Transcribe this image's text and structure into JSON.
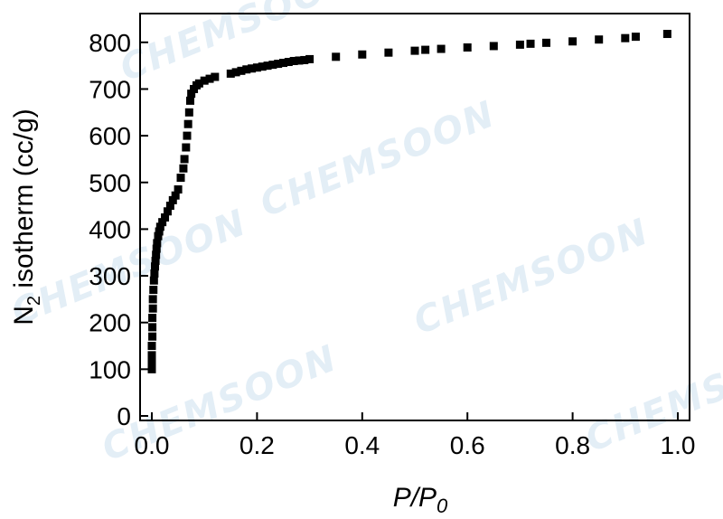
{
  "watermark": "CHEMSOON",
  "chart_data": {
    "type": "scatter",
    "title": "",
    "xlabel_main": "P/P",
    "xlabel_sub": "0",
    "ylabel_main": "N",
    "ylabel_sub": "2",
    "ylabel_rest": " isotherm (cc/g)",
    "xlim": [
      0.0,
      1.0
    ],
    "ylim": [
      0,
      850
    ],
    "xticks": [
      0.0,
      0.2,
      0.4,
      0.6,
      0.8,
      1.0
    ],
    "xtick_labels": [
      "0.0",
      "0.2",
      "0.4",
      "0.6",
      "0.8",
      "1.0"
    ],
    "yticks": [
      0,
      100,
      200,
      300,
      400,
      500,
      600,
      700,
      800
    ],
    "ytick_labels": [
      "0",
      "100",
      "200",
      "300",
      "400",
      "500",
      "600",
      "700",
      "800"
    ],
    "grid": false,
    "marker": "square",
    "marker_color": "#000000",
    "series": [
      {
        "x": [
          0.0,
          0.0,
          0.0,
          0.0,
          0.001,
          0.001,
          0.001,
          0.002,
          0.002,
          0.003,
          0.004,
          0.005,
          0.006,
          0.007,
          0.008,
          0.009,
          0.01,
          0.012,
          0.014,
          0.016,
          0.02,
          0.025,
          0.03,
          0.035,
          0.04,
          0.045,
          0.05,
          0.055,
          0.06,
          0.062,
          0.065,
          0.067,
          0.069,
          0.071,
          0.073,
          0.075,
          0.08,
          0.085,
          0.09,
          0.1,
          0.11,
          0.12,
          0.15,
          0.16,
          0.17,
          0.18,
          0.19,
          0.2,
          0.21,
          0.22,
          0.23,
          0.24,
          0.25,
          0.26,
          0.27,
          0.28,
          0.29,
          0.3,
          0.35,
          0.4,
          0.45,
          0.5,
          0.52,
          0.55,
          0.6,
          0.65,
          0.7,
          0.72,
          0.75,
          0.8,
          0.85,
          0.9,
          0.92,
          0.98
        ],
        "y": [
          100,
          115,
          130,
          150,
          170,
          190,
          210,
          230,
          250,
          270,
          290,
          305,
          320,
          332,
          345,
          358,
          370,
          385,
          395,
          405,
          415,
          425,
          438,
          450,
          462,
          472,
          485,
          510,
          530,
          550,
          575,
          600,
          625,
          650,
          675,
          690,
          700,
          708,
          712,
          718,
          722,
          726,
          733,
          736,
          739,
          742,
          744,
          746,
          748,
          750,
          752,
          754,
          756,
          758,
          760,
          761,
          762,
          764,
          769,
          774,
          778,
          782,
          784,
          786,
          789,
          792,
          795,
          797,
          799,
          802,
          806,
          809,
          812,
          818
        ]
      }
    ]
  }
}
